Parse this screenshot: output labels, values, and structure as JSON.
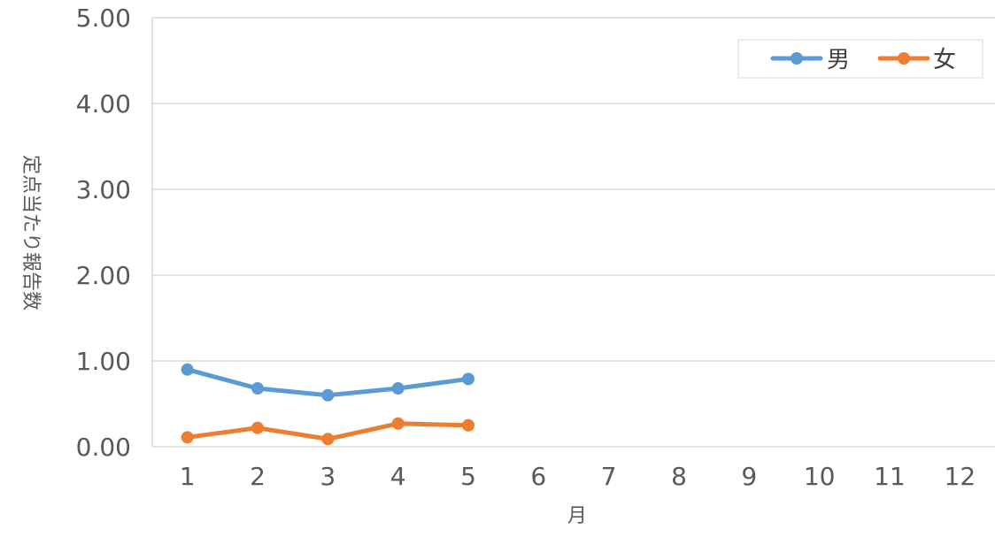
{
  "chart_data": {
    "type": "line",
    "title": "",
    "xlabel": "月",
    "ylabel": "定点当たり報告数",
    "categories": [
      "1",
      "2",
      "3",
      "4",
      "5",
      "6",
      "7",
      "8",
      "9",
      "10",
      "11",
      "12"
    ],
    "ylim": [
      0,
      5
    ],
    "yticks": [
      "0.00",
      "1.00",
      "2.00",
      "3.00",
      "4.00",
      "5.00"
    ],
    "grid": true,
    "legend_position": "top-right",
    "series": [
      {
        "name": "男",
        "color": "#5B9BD5",
        "values": [
          0.9,
          0.68,
          0.6,
          0.68,
          0.79,
          null,
          null,
          null,
          null,
          null,
          null,
          null
        ]
      },
      {
        "name": "女",
        "color": "#ED7D31",
        "values": [
          0.11,
          0.22,
          0.09,
          0.27,
          0.25,
          null,
          null,
          null,
          null,
          null,
          null,
          null
        ]
      }
    ]
  }
}
